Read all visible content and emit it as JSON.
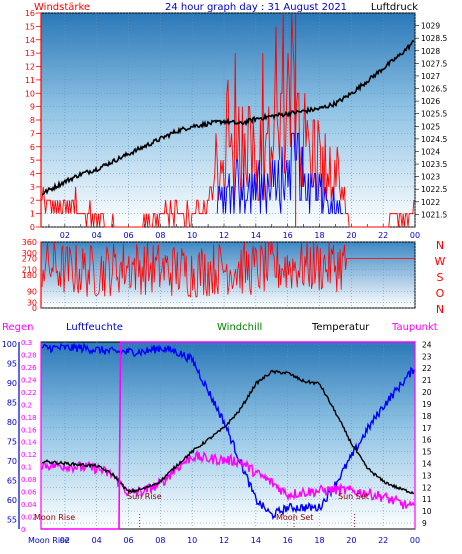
{
  "header": {
    "left_label": "Windstärke",
    "title": "24 hour graph day : 31 August 2021",
    "right_label": "Luftdruck"
  },
  "panel2": {
    "compass_labels": [
      "N",
      "W",
      "S",
      "O",
      "N"
    ]
  },
  "panel3": {
    "labels": {
      "regen": "Regen",
      "luftfeuchte": "Luftfeuchte",
      "windchill": "Windchill",
      "temperatur": "Temperatur",
      "taupunkt": "Taupunkt"
    },
    "annotations": {
      "moon_rise": "Moon Rise",
      "moon_set": "Moon Set",
      "sun_rise": "Sun Rise",
      "sun_set": "Sun Set"
    }
  },
  "colors": {
    "wind": "#ff0000",
    "gust_blue": "#0000ff",
    "pressure": "#000000",
    "humidity": "#0000ff",
    "temperature": "#000000",
    "dewpoint": "#ff00ff",
    "windchill": "#008000",
    "rain": "#ff00ff",
    "header_title": "#0000cc"
  },
  "chart_data": [
    {
      "type": "line",
      "title": "24 hour graph day : 31 August 2021",
      "x_ticks": [
        "02",
        "04",
        "06",
        "08",
        "10",
        "12",
        "14",
        "16",
        "18",
        "20",
        "22",
        "00"
      ],
      "x_range_hours": [
        0.5,
        24
      ],
      "left_axis": {
        "label": "Windstärke",
        "ylim": [
          0,
          16
        ],
        "ticks": [
          0,
          1,
          2,
          3,
          4,
          5,
          6,
          7,
          8,
          9,
          10,
          11,
          12,
          13,
          14,
          15,
          16
        ]
      },
      "right_axis": {
        "label": "Luftdruck",
        "ylim": [
          1021,
          1029.5
        ],
        "ticks": [
          1021.5,
          1022,
          1022.5,
          1023,
          1023.5,
          1024,
          1024.5,
          1025,
          1025.5,
          1026,
          1026.5,
          1027,
          1027.5,
          1028,
          1028.5,
          1029
        ]
      },
      "series": [
        {
          "name": "Luftdruck",
          "axis": "right",
          "hours": [
            0.5,
            2,
            3,
            4,
            5,
            6,
            7,
            8,
            9,
            10,
            11,
            12,
            13,
            14,
            15,
            16,
            17,
            18,
            19,
            20,
            21,
            22,
            23,
            24
          ],
          "values": [
            1022.3,
            1022.8,
            1023.1,
            1023.3,
            1023.6,
            1023.9,
            1024.2,
            1024.5,
            1024.8,
            1025.0,
            1025.1,
            1025.2,
            1025.1,
            1025.3,
            1025.4,
            1025.5,
            1025.6,
            1025.7,
            1025.9,
            1026.3,
            1026.8,
            1027.3,
            1027.8,
            1028.4
          ]
        },
        {
          "name": "Windstärke",
          "axis": "left",
          "hours": [
            0.5,
            2,
            4,
            6,
            8,
            10,
            11,
            12,
            13,
            14,
            15,
            16,
            16.5,
            17,
            18,
            19,
            19.5,
            20,
            22,
            24
          ],
          "values": [
            2,
            2,
            1,
            0,
            1,
            1,
            3,
            6,
            9,
            8,
            9,
            11,
            16,
            9,
            7,
            4,
            2,
            0,
            0,
            2
          ]
        }
      ]
    },
    {
      "type": "line",
      "title": "",
      "x_range_hours": [
        0.5,
        24
      ],
      "left_axis": {
        "ylim": [
          0,
          360
        ],
        "ticks": [
          0,
          30,
          90,
          180,
          210,
          270,
          300,
          360
        ]
      },
      "right_axis": {
        "labels": [
          "N",
          "W",
          "S",
          "O",
          "N"
        ]
      },
      "series": [
        {
          "name": "",
          "hours": [
            0.5,
            2,
            4,
            6,
            8,
            10,
            12,
            14,
            16,
            18,
            19.7,
            20,
            24
          ],
          "values": [
            240,
            210,
            200,
            230,
            210,
            200,
            220,
            210,
            230,
            230,
            240,
            270,
            270
          ]
        }
      ]
    },
    {
      "type": "line",
      "title": "",
      "x_ticks": [
        "02",
        "04",
        "06",
        "08",
        "10",
        "12",
        "14",
        "16",
        "18",
        "20",
        "22",
        "00"
      ],
      "x_range_hours": [
        0.5,
        24
      ],
      "left_axis_humidity": {
        "label": "Luftfeuchte",
        "ylim": [
          52.5,
          100.5
        ],
        "ticks": [
          55,
          60,
          65,
          70,
          75,
          80,
          85,
          90,
          95,
          100
        ]
      },
      "left_axis_rain": {
        "label": "Regen",
        "ylim": [
          0,
          0.3
        ],
        "ticks": [
          0,
          0.02,
          0.04,
          0.06,
          0.08,
          0.1,
          0.12,
          0.14,
          0.16,
          0.18,
          0.2,
          0.22,
          0.24,
          0.26,
          0.28,
          0.3
        ]
      },
      "right_axis": {
        "label": "Temperatur",
        "ylim": [
          8.5,
          24.2
        ],
        "ticks": [
          9,
          10,
          11,
          12,
          13,
          14,
          15,
          16,
          17,
          18,
          19,
          20,
          21,
          22,
          23,
          24
        ]
      },
      "series": [
        {
          "name": "Luftfeuchte",
          "axis": "humidity",
          "hours": [
            0.5,
            3,
            5,
            6,
            7,
            8,
            9,
            10,
            11,
            12,
            13,
            14,
            15,
            16,
            17,
            18,
            19,
            20,
            21,
            22,
            23,
            24
          ],
          "values": [
            99,
            99,
            98,
            98,
            98,
            99,
            98,
            96,
            88,
            80,
            70,
            60,
            56,
            58,
            58,
            58,
            64,
            71,
            78,
            84,
            89,
            94
          ]
        },
        {
          "name": "Temperatur",
          "axis": "right",
          "hours": [
            0.5,
            2,
            4,
            5,
            6,
            7,
            8,
            9,
            10,
            11,
            12,
            13,
            14,
            15,
            16,
            17,
            18,
            19,
            20,
            21,
            22,
            23,
            24
          ],
          "values": [
            14.2,
            14.0,
            13.8,
            13.1,
            11.6,
            11.9,
            12.5,
            13.8,
            15.0,
            16.0,
            17.0,
            18.5,
            20.7,
            21.7,
            21.6,
            20.9,
            20.7,
            18.3,
            15.7,
            13.6,
            12.5,
            11.9,
            11.5
          ]
        },
        {
          "name": "Taupunkt",
          "axis": "right",
          "hours": [
            0.5,
            2,
            4,
            5,
            6,
            7,
            8,
            9,
            10,
            11,
            12,
            13,
            14,
            15,
            16,
            17,
            18,
            19,
            20,
            21,
            22,
            23,
            24
          ],
          "values": [
            13.9,
            13.8,
            13.6,
            13.0,
            11.5,
            11.7,
            12.3,
            13.6,
            14.6,
            14.4,
            14.3,
            14.2,
            13.2,
            12.4,
            11.4,
            11.6,
            11.7,
            11.8,
            11.7,
            11.5,
            11.2,
            10.7,
            10.2
          ]
        },
        {
          "name": "Regen",
          "axis": "rain",
          "hours": [
            0.5,
            5.4,
            5.5,
            24
          ],
          "values": [
            0,
            0,
            0.3,
            0.3
          ]
        }
      ],
      "markers": {
        "sun_rise_hour": 6.7,
        "sun_set_hour": 20.2,
        "moon_set_hour": 16.4
      }
    }
  ]
}
